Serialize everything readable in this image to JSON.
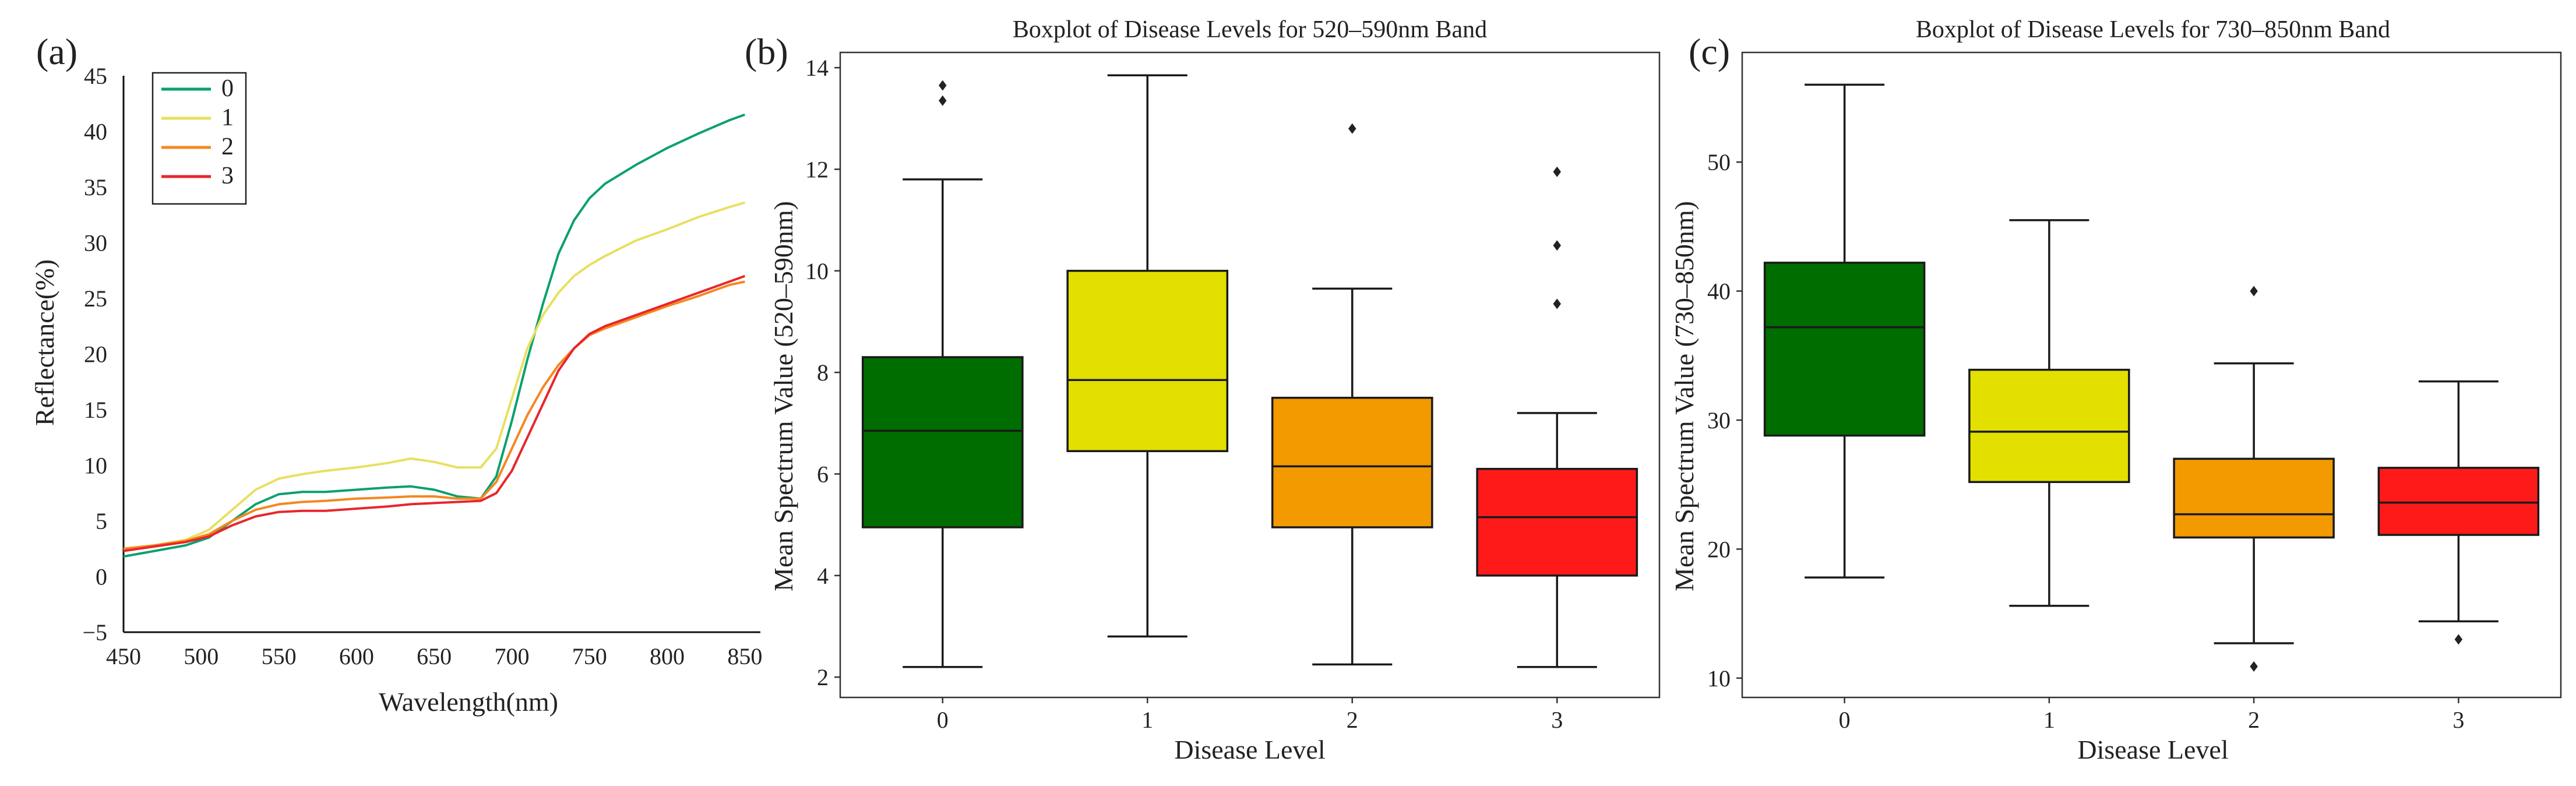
{
  "chart_data": [
    {
      "type": "line",
      "panel_label": "(a)",
      "title": "",
      "xlabel": "Wavelength(nm)",
      "ylabel": "Reflectance(%)",
      "xlim": [
        450,
        860
      ],
      "ylim": [
        -5,
        45
      ],
      "xticks": [
        450,
        500,
        550,
        600,
        650,
        700,
        750,
        800,
        850
      ],
      "yticks": [
        -5,
        0,
        5,
        10,
        15,
        20,
        25,
        30,
        35,
        40,
        45
      ],
      "legend": "top-left",
      "series": [
        {
          "name": "0",
          "color": "#0aa06e",
          "x": [
            450,
            470,
            490,
            505,
            520,
            535,
            550,
            565,
            580,
            600,
            620,
            635,
            650,
            665,
            680,
            690,
            700,
            710,
            720,
            730,
            740,
            750,
            760,
            780,
            800,
            820,
            840,
            850
          ],
          "y": [
            1.8,
            2.3,
            2.8,
            3.5,
            5.0,
            6.5,
            7.4,
            7.6,
            7.6,
            7.8,
            8.0,
            8.1,
            7.8,
            7.2,
            7.0,
            9.0,
            14.0,
            19.5,
            24.5,
            29.0,
            32.0,
            34.0,
            35.3,
            37.0,
            38.5,
            39.8,
            41.0,
            41.5
          ]
        },
        {
          "name": "1",
          "color": "#e8e060",
          "x": [
            450,
            470,
            490,
            505,
            520,
            535,
            550,
            565,
            580,
            600,
            620,
            635,
            650,
            665,
            680,
            690,
            700,
            710,
            720,
            730,
            740,
            750,
            760,
            780,
            800,
            820,
            840,
            850
          ],
          "y": [
            2.5,
            2.8,
            3.3,
            4.2,
            6.0,
            7.8,
            8.8,
            9.2,
            9.5,
            9.8,
            10.2,
            10.6,
            10.3,
            9.8,
            9.8,
            11.5,
            16.0,
            20.5,
            23.5,
            25.5,
            27.0,
            28.0,
            28.8,
            30.2,
            31.2,
            32.3,
            33.2,
            33.6
          ]
        },
        {
          "name": "2",
          "color": "#f5871f",
          "x": [
            450,
            470,
            490,
            505,
            520,
            535,
            550,
            565,
            580,
            600,
            620,
            635,
            650,
            665,
            680,
            690,
            700,
            710,
            720,
            730,
            740,
            750,
            760,
            780,
            800,
            820,
            840,
            850
          ],
          "y": [
            2.5,
            2.8,
            3.2,
            3.8,
            5.0,
            6.0,
            6.5,
            6.7,
            6.8,
            7.0,
            7.1,
            7.2,
            7.2,
            7.0,
            7.0,
            8.5,
            11.5,
            14.5,
            17.0,
            19.0,
            20.5,
            21.7,
            22.3,
            23.3,
            24.3,
            25.2,
            26.2,
            26.5
          ]
        },
        {
          "name": "3",
          "color": "#e8262b",
          "x": [
            450,
            470,
            490,
            505,
            520,
            535,
            550,
            565,
            580,
            600,
            620,
            635,
            650,
            665,
            680,
            690,
            700,
            710,
            720,
            730,
            740,
            750,
            760,
            780,
            800,
            820,
            840,
            850
          ],
          "y": [
            2.3,
            2.7,
            3.1,
            3.6,
            4.6,
            5.4,
            5.8,
            5.9,
            5.9,
            6.1,
            6.3,
            6.5,
            6.6,
            6.7,
            6.8,
            7.5,
            9.5,
            12.5,
            15.5,
            18.5,
            20.5,
            21.8,
            22.5,
            23.5,
            24.5,
            25.5,
            26.5,
            27.0
          ]
        }
      ]
    },
    {
      "type": "boxplot",
      "panel_label": "(b)",
      "title": "Boxplot of Disease Levels for 520–590nm Band",
      "xlabel": "Disease Level",
      "ylabel": "Mean Spectrum Value (520–590nm)",
      "ylim": [
        1.6,
        14.3
      ],
      "yticks": [
        2,
        4,
        6,
        8,
        10,
        12,
        14
      ],
      "categories": [
        "0",
        "1",
        "2",
        "3"
      ],
      "boxes": [
        {
          "label": "0",
          "color": "#006d00",
          "whisker_low": 2.2,
          "q1": 4.95,
          "median": 6.85,
          "q3": 8.3,
          "whisker_high": 11.8,
          "outliers": [
            13.35,
            13.65
          ]
        },
        {
          "label": "1",
          "color": "#e3e000",
          "whisker_low": 2.8,
          "q1": 6.45,
          "median": 7.85,
          "q3": 10.0,
          "whisker_high": 13.85,
          "outliers": []
        },
        {
          "label": "2",
          "color": "#f29a00",
          "whisker_low": 2.25,
          "q1": 4.95,
          "median": 6.15,
          "q3": 7.5,
          "whisker_high": 9.65,
          "outliers": [
            12.8
          ]
        },
        {
          "label": "3",
          "color": "#ff1a1a",
          "whisker_low": 2.2,
          "q1": 4.0,
          "median": 5.15,
          "q3": 6.1,
          "whisker_high": 7.2,
          "outliers": [
            9.35,
            10.5,
            11.95
          ]
        }
      ]
    },
    {
      "type": "boxplot",
      "panel_label": "(c)",
      "title": "Boxplot of Disease Levels for 730–850nm Band",
      "xlabel": "Disease Level",
      "ylabel": "Mean Spectrum Value (730–850nm)",
      "ylim": [
        8.5,
        58.5
      ],
      "yticks": [
        10,
        20,
        30,
        40,
        50
      ],
      "categories": [
        "0",
        "1",
        "2",
        "3"
      ],
      "boxes": [
        {
          "label": "0",
          "color": "#006d00",
          "whisker_low": 17.8,
          "q1": 28.8,
          "median": 37.2,
          "q3": 42.2,
          "whisker_high": 56.0,
          "outliers": []
        },
        {
          "label": "1",
          "color": "#e3e000",
          "whisker_low": 15.6,
          "q1": 25.2,
          "median": 29.1,
          "q3": 33.9,
          "whisker_high": 45.5,
          "outliers": []
        },
        {
          "label": "2",
          "color": "#f29a00",
          "whisker_low": 12.7,
          "q1": 20.9,
          "median": 22.7,
          "q3": 27.0,
          "whisker_high": 34.4,
          "outliers": [
            10.9,
            40.0
          ]
        },
        {
          "label": "3",
          "color": "#ff1a1a",
          "whisker_low": 14.4,
          "q1": 21.1,
          "median": 23.6,
          "q3": 26.3,
          "whisker_high": 33.0,
          "outliers": [
            13.0
          ]
        }
      ]
    }
  ]
}
